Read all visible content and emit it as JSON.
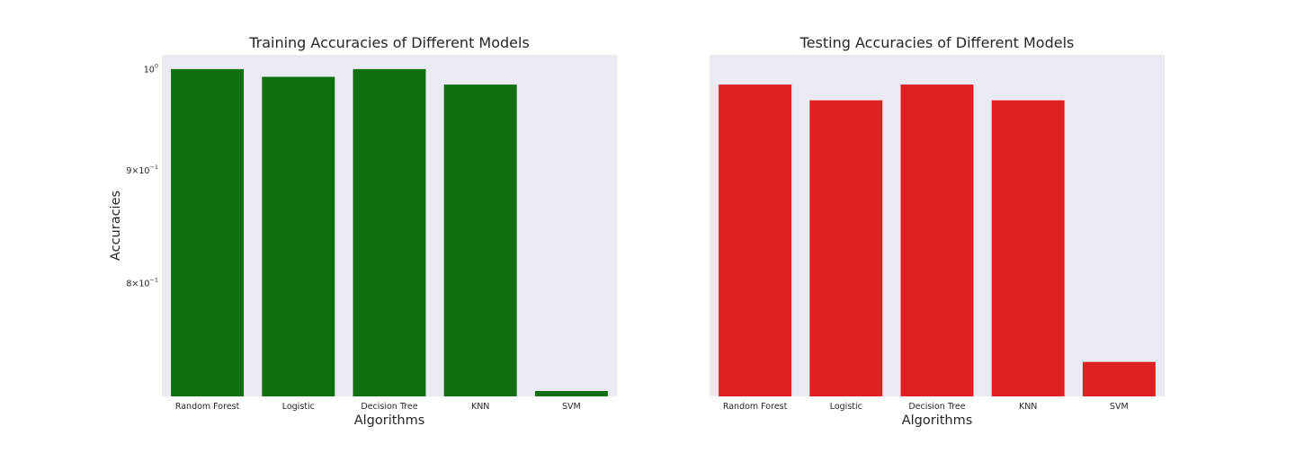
{
  "chart_data": [
    {
      "type": "bar",
      "title": "Training Accuracies of Different Models",
      "xlabel": "Algorithms",
      "ylabel": "Accuracies",
      "categories": [
        "Random Forest",
        "Logistic",
        "Decision Tree",
        "KNN",
        "SVM"
      ],
      "values": [
        1.0,
        0.992,
        1.0,
        0.984,
        0.715
      ],
      "yscale": "log",
      "ylim": [
        0.711,
        1.015
      ],
      "yticks": [
        {
          "value": 1.0,
          "base": "10",
          "exp": "0"
        },
        {
          "value": 0.9,
          "base": "9×10",
          "exp": "−1"
        },
        {
          "value": 0.8,
          "base": "8×10",
          "exp": "−1"
        }
      ],
      "color": "#107010",
      "background": "#eaeaf2",
      "grid": false
    },
    {
      "type": "bar",
      "title": "Testing Accuracies of Different Models",
      "xlabel": "Algorithms",
      "ylabel": "",
      "categories": [
        "Random Forest",
        "Logistic",
        "Decision Tree",
        "KNN",
        "SVM"
      ],
      "values": [
        0.984,
        0.968,
        0.984,
        0.968,
        0.737
      ],
      "yscale": "log",
      "ylim": [
        0.711,
        1.015
      ],
      "yticks": [],
      "color": "#df2020",
      "background": "#eaeaf2",
      "grid": false
    }
  ]
}
